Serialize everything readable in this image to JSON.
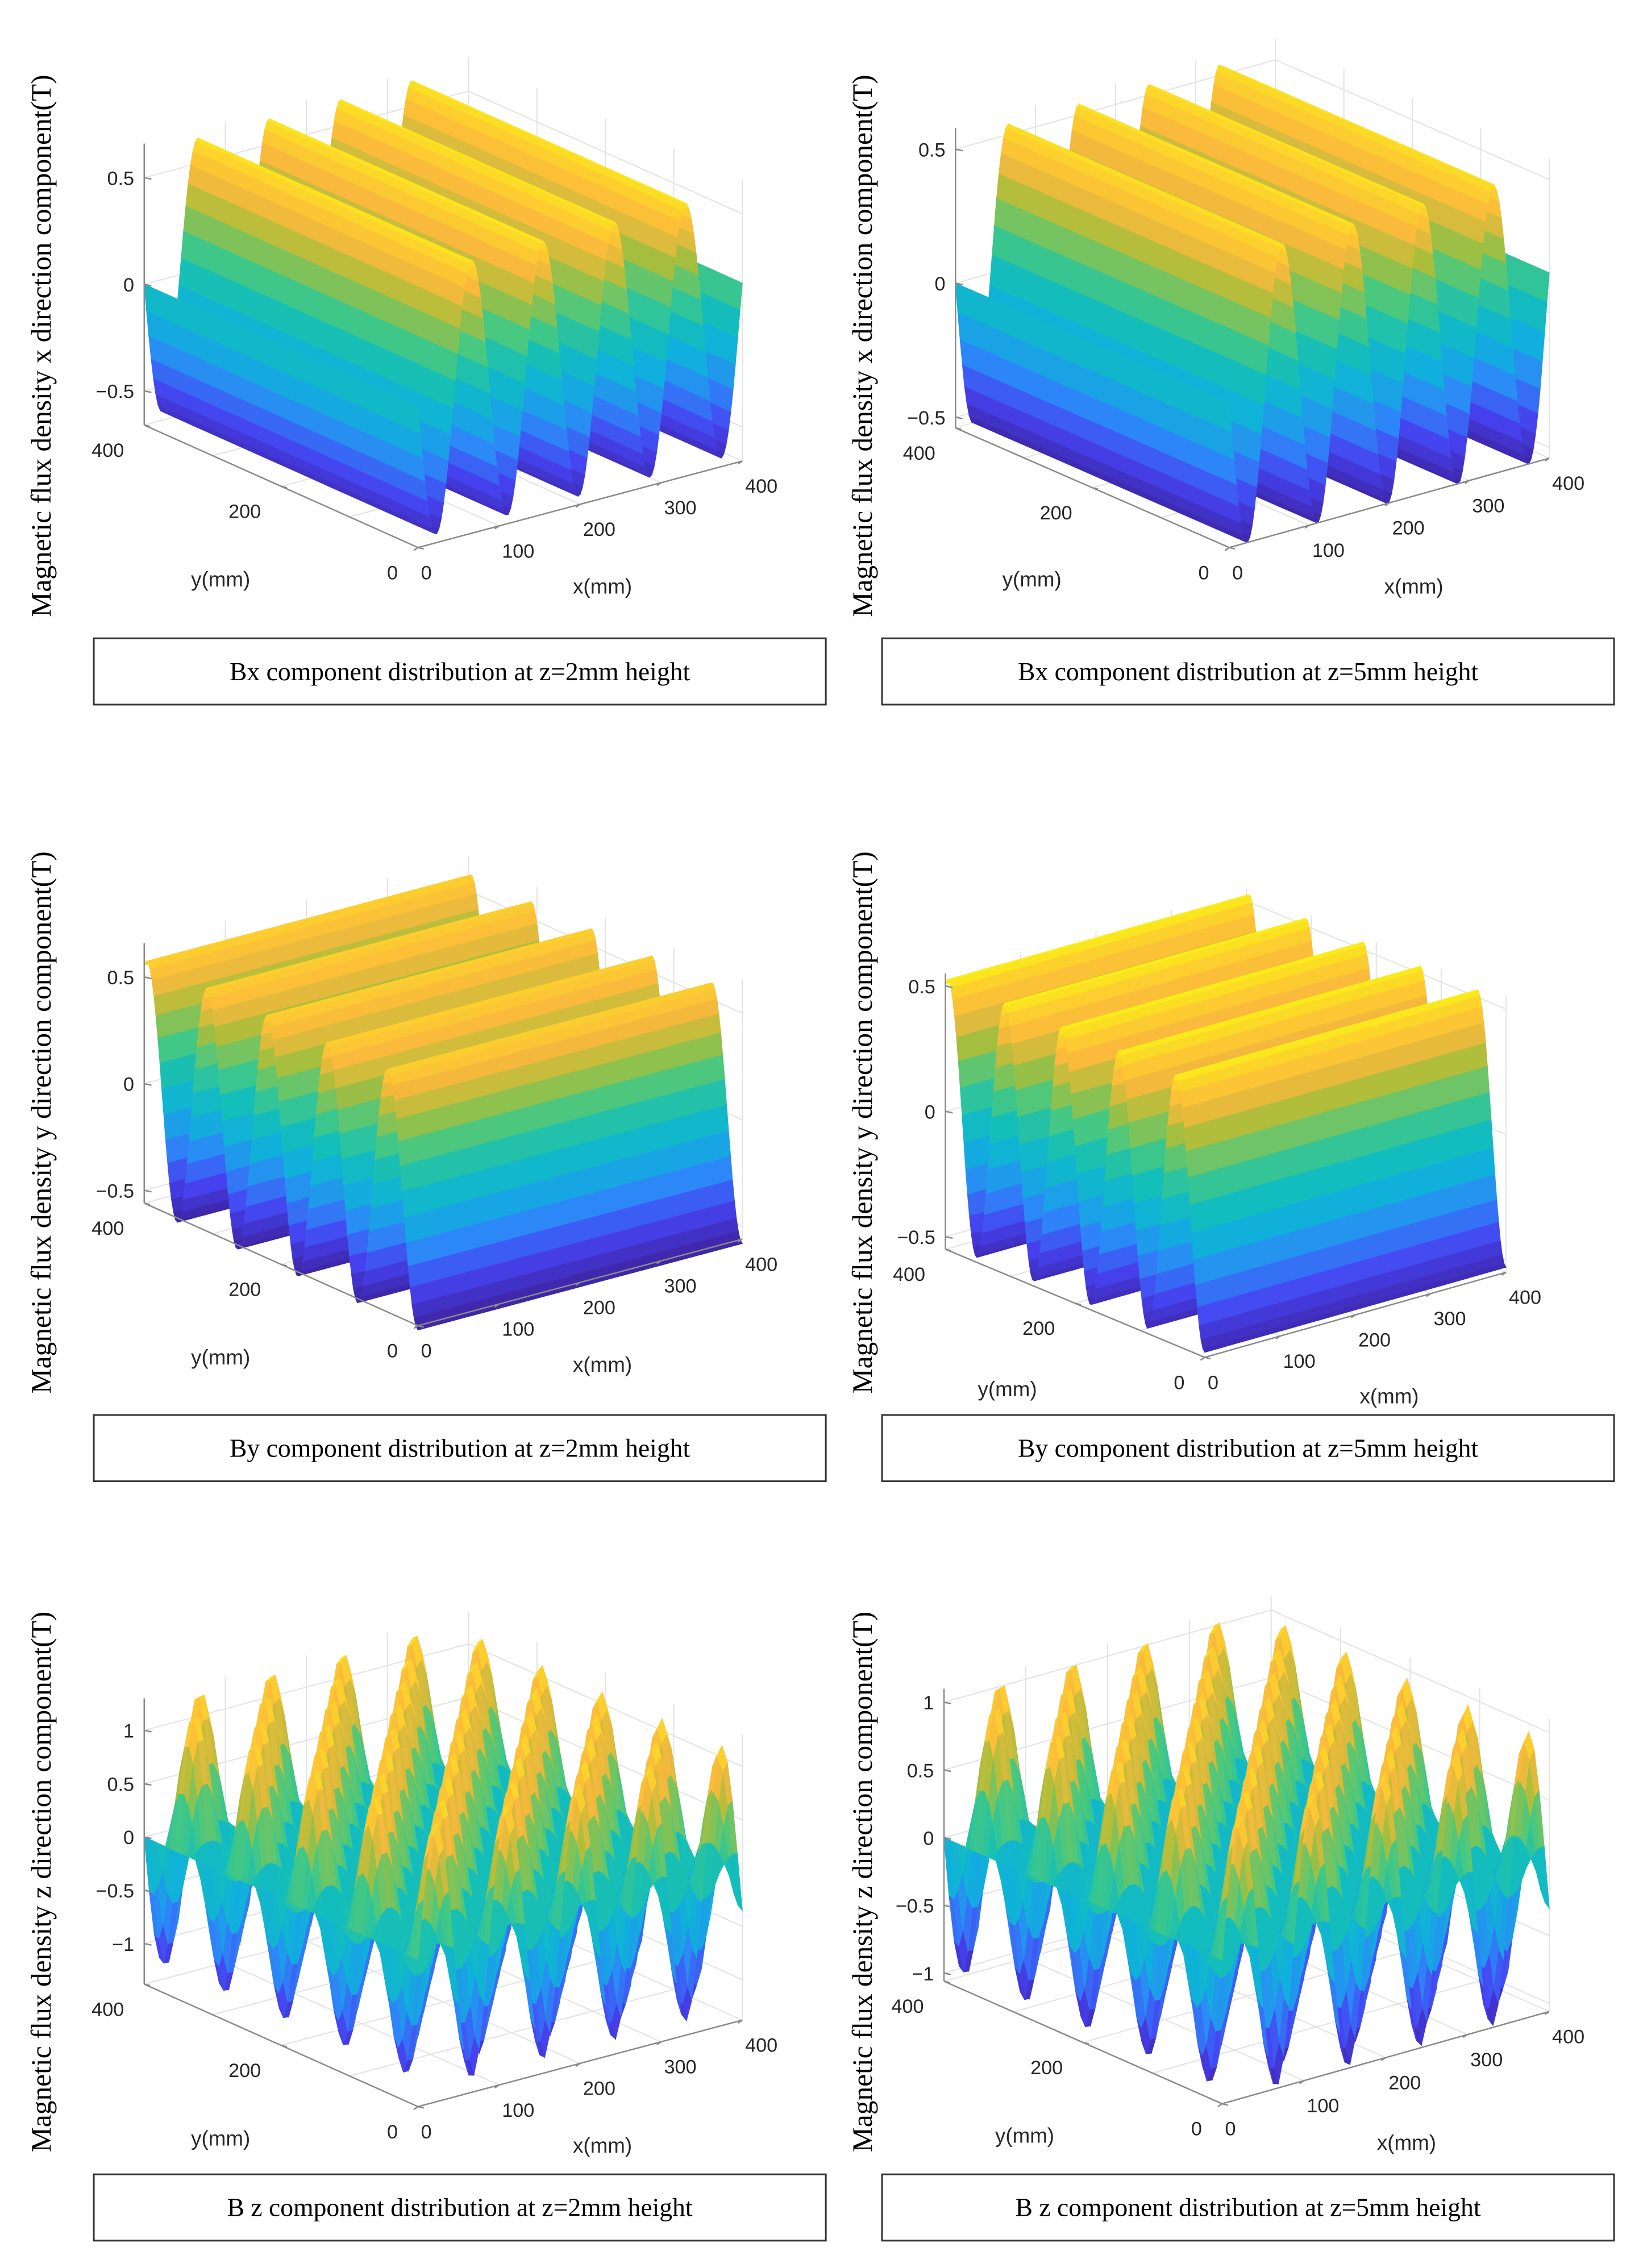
{
  "chart_data": [
    {
      "type": "surface",
      "title": "Bx component distribution at z=2mm height",
      "zlabel": "Magnetic flux density x direction component(T)",
      "xlabel": "x(mm)",
      "ylabel": "y(mm)",
      "xlim": [
        0,
        400
      ],
      "ylim": [
        0,
        400
      ],
      "zlim": [
        -0.66,
        0.66
      ],
      "xticks": [
        "0",
        "100",
        "200",
        "300",
        "400"
      ],
      "yticks": [
        "0",
        "200",
        "400"
      ],
      "zticks": [
        "−0.5",
        "0",
        "0.5"
      ],
      "ztick_values": [
        -0.5,
        0,
        0.5
      ],
      "amplitude": 0.62,
      "wavelength_mm": 88,
      "variation_axis": "x",
      "colormap": "parula"
    },
    {
      "type": "surface",
      "title": "Bx component distribution at z=5mm height",
      "zlabel": "Magnetic flux density x direction component(T)",
      "xlabel": "x(mm)",
      "ylabel": "y(mm)",
      "xlim": [
        0,
        400
      ],
      "ylim": [
        0,
        400
      ],
      "zlim": [
        -0.54,
        0.58
      ],
      "xticks": [
        "0",
        "100",
        "200",
        "300",
        "400"
      ],
      "yticks": [
        "0",
        "200",
        "400"
      ],
      "zticks": [
        "−0.5",
        "0",
        "0.5"
      ],
      "ztick_values": [
        -0.5,
        0,
        0.5
      ],
      "amplitude": 0.54,
      "wavelength_mm": 88,
      "variation_axis": "x",
      "colormap": "parula"
    },
    {
      "type": "surface",
      "title": "By component distribution at z=2mm height",
      "zlabel": "Magnetic flux density y direction component(T)",
      "xlabel": "x(mm)",
      "ylabel": "y(mm)",
      "xlim": [
        0,
        400
      ],
      "ylim": [
        0,
        400
      ],
      "zlim": [
        -0.56,
        0.66
      ],
      "xticks": [
        "0",
        "100",
        "200",
        "300",
        "400"
      ],
      "yticks": [
        "0",
        "200",
        "400"
      ],
      "zticks": [
        "−0.5",
        "0",
        "0.5"
      ],
      "ztick_values": [
        -0.5,
        0,
        0.5
      ],
      "amplitude": 0.58,
      "wavelength_mm": 88,
      "variation_axis": "y",
      "colormap": "parula"
    },
    {
      "type": "surface",
      "title": "By component distribution at z=5mm height",
      "zlabel": "Magnetic flux density y direction component(T)",
      "xlabel": "x(mm)",
      "ylabel": "y(mm)",
      "xlim": [
        0,
        400
      ],
      "ylim": [
        0,
        400
      ],
      "zlim": [
        -0.55,
        0.55
      ],
      "xticks": [
        "0",
        "100",
        "200",
        "300",
        "400"
      ],
      "yticks": [
        "0",
        "200",
        "400"
      ],
      "zticks": [
        "−0.5",
        "0",
        "0.5"
      ],
      "ztick_values": [
        -0.5,
        0,
        0.5
      ],
      "amplitude": 0.53,
      "wavelength_mm": 88,
      "variation_axis": "y",
      "colormap": "parula"
    },
    {
      "type": "surface",
      "title": "B z component distribution at z=2mm height",
      "zlabel": "Magnetic flux density z direction component(T)",
      "xlabel": "x(mm)",
      "ylabel": "y(mm)",
      "xlim": [
        0,
        400
      ],
      "ylim": [
        0,
        400
      ],
      "zlim": [
        -1.38,
        1.3
      ],
      "xticks": [
        "0",
        "100",
        "200",
        "300",
        "400"
      ],
      "yticks": [
        "0",
        "200",
        "400"
      ],
      "zticks": [
        "−1",
        "−0.5",
        "0",
        "0.5",
        "1"
      ],
      "ztick_values": [
        -1,
        -0.5,
        0,
        0.5,
        1
      ],
      "amplitude": 1.25,
      "wavelength_mm": 88,
      "variation_axis": "xy",
      "colormap": "parula"
    },
    {
      "type": "surface",
      "title": "B z component distribution at z=5mm height",
      "zlabel": "Magnetic flux density z direction component(T)",
      "xlabel": "x(mm)",
      "ylabel": "y(mm)",
      "xlim": [
        0,
        400
      ],
      "ylim": [
        0,
        400
      ],
      "zlim": [
        -1.06,
        1.1
      ],
      "xticks": [
        "0",
        "100",
        "200",
        "300",
        "400"
      ],
      "yticks": [
        "0",
        "200",
        "400"
      ],
      "zticks": [
        "−1",
        "−0.5",
        "0",
        "0.5",
        "1"
      ],
      "ztick_values": [
        -1,
        -0.5,
        0,
        0.5,
        1
      ],
      "amplitude": 1.05,
      "wavelength_mm": 88,
      "variation_axis": "xy",
      "colormap": "parula"
    }
  ]
}
